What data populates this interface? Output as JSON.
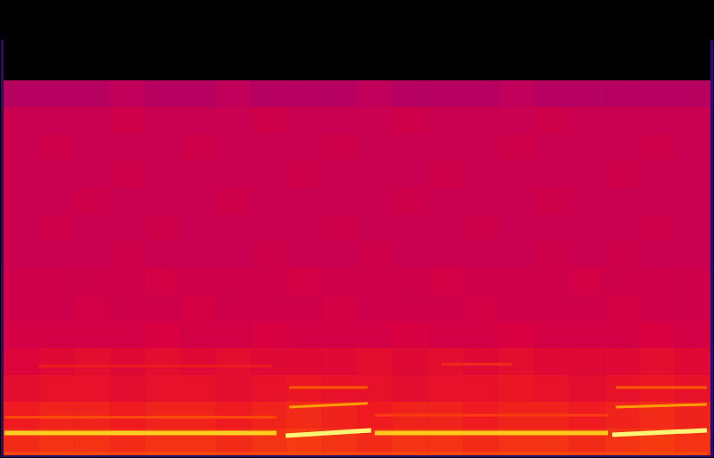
{
  "chart_data": {
    "type": "spectrogram",
    "tick_labels": false,
    "xlim": [
      0,
      100
    ],
    "ylim": [
      0,
      1
    ],
    "cells": [
      [
        0,
        0,
        0,
        0,
        0,
        0,
        0,
        0,
        0,
        0,
        0,
        0,
        0,
        0,
        0,
        0,
        0,
        0,
        0,
        0
      ],
      [
        0,
        0,
        0,
        0,
        0,
        0,
        0,
        0,
        0,
        0,
        0,
        0,
        0,
        0,
        0,
        0,
        0,
        0,
        0,
        0
      ],
      [
        0,
        0,
        0,
        0,
        0,
        0,
        0,
        0,
        0,
        0,
        0,
        0,
        0,
        0,
        0,
        0,
        0,
        0,
        0,
        0
      ],
      [
        0.52,
        0.52,
        0.52,
        0.53,
        0.52,
        0.52,
        0.53,
        0.52,
        0.52,
        0.52,
        0.53,
        0.52,
        0.52,
        0.52,
        0.53,
        0.52,
        0.52,
        0.52,
        0.52,
        0.52
      ],
      [
        0.55,
        0.55,
        0.55,
        0.56,
        0.55,
        0.55,
        0.55,
        0.56,
        0.55,
        0.55,
        0.55,
        0.56,
        0.55,
        0.55,
        0.55,
        0.56,
        0.55,
        0.55,
        0.55,
        0.55
      ],
      [
        0.55,
        0.56,
        0.55,
        0.55,
        0.55,
        0.56,
        0.55,
        0.55,
        0.55,
        0.56,
        0.55,
        0.55,
        0.55,
        0.55,
        0.56,
        0.55,
        0.55,
        0.55,
        0.56,
        0.55
      ],
      [
        0.55,
        0.55,
        0.55,
        0.56,
        0.55,
        0.55,
        0.55,
        0.55,
        0.56,
        0.55,
        0.55,
        0.55,
        0.56,
        0.55,
        0.55,
        0.55,
        0.55,
        0.56,
        0.55,
        0.55
      ],
      [
        0.55,
        0.55,
        0.56,
        0.55,
        0.55,
        0.55,
        0.56,
        0.55,
        0.55,
        0.55,
        0.55,
        0.56,
        0.55,
        0.55,
        0.55,
        0.56,
        0.55,
        0.55,
        0.55,
        0.55
      ],
      [
        0.55,
        0.56,
        0.55,
        0.55,
        0.56,
        0.55,
        0.55,
        0.55,
        0.55,
        0.56,
        0.55,
        0.55,
        0.55,
        0.56,
        0.55,
        0.55,
        0.55,
        0.55,
        0.56,
        0.55
      ],
      [
        0.55,
        0.55,
        0.55,
        0.56,
        0.55,
        0.55,
        0.55,
        0.56,
        0.55,
        0.55,
        0.56,
        0.55,
        0.55,
        0.55,
        0.55,
        0.56,
        0.55,
        0.56,
        0.55,
        0.55
      ],
      [
        0.56,
        0.56,
        0.56,
        0.56,
        0.57,
        0.56,
        0.56,
        0.56,
        0.57,
        0.56,
        0.56,
        0.56,
        0.57,
        0.56,
        0.56,
        0.56,
        0.57,
        0.56,
        0.56,
        0.56
      ],
      [
        0.56,
        0.56,
        0.57,
        0.56,
        0.56,
        0.57,
        0.56,
        0.56,
        0.56,
        0.57,
        0.56,
        0.56,
        0.56,
        0.57,
        0.56,
        0.56,
        0.56,
        0.57,
        0.56,
        0.56
      ],
      [
        0.57,
        0.57,
        0.57,
        0.57,
        0.58,
        0.57,
        0.57,
        0.58,
        0.57,
        0.57,
        0.57,
        0.58,
        0.57,
        0.57,
        0.58,
        0.57,
        0.57,
        0.57,
        0.58,
        0.57
      ],
      [
        0.59,
        0.6,
        0.61,
        0.6,
        0.61,
        0.6,
        0.61,
        0.6,
        0.6,
        0.6,
        0.61,
        0.6,
        0.61,
        0.6,
        0.61,
        0.6,
        0.6,
        0.6,
        0.61,
        0.6
      ],
      [
        0.61,
        0.62,
        0.62,
        0.61,
        0.62,
        0.62,
        0.61,
        0.62,
        0.63,
        0.62,
        0.62,
        0.61,
        0.62,
        0.62,
        0.63,
        0.62,
        0.61,
        0.62,
        0.63,
        0.62
      ],
      [
        0.64,
        0.65,
        0.65,
        0.64,
        0.65,
        0.65,
        0.64,
        0.65,
        0.66,
        0.65,
        0.64,
        0.65,
        0.65,
        0.64,
        0.65,
        0.65,
        0.64,
        0.65,
        0.66,
        0.65
      ],
      [
        0.66,
        0.67,
        0.67,
        0.66,
        0.67,
        0.67,
        0.66,
        0.67,
        0.68,
        0.67,
        0.66,
        0.67,
        0.67,
        0.66,
        0.67,
        0.67,
        0.66,
        0.67,
        0.68,
        0.67
      ]
    ],
    "tracks": [
      {
        "x": [
          0.1,
          38.6
        ],
        "y": [
          0.049,
          0.049
        ],
        "level": 0.9
      },
      {
        "x": [
          39.9,
          52.0
        ],
        "y": [
          0.043,
          0.055
        ],
        "level": 0.97
      },
      {
        "x": [
          52.5,
          85.5
        ],
        "y": [
          0.049,
          0.049
        ],
        "level": 0.89
      },
      {
        "x": [
          86.1,
          99.5
        ],
        "y": [
          0.045,
          0.055
        ],
        "level": 0.97
      },
      {
        "x": [
          40.4,
          51.5
        ],
        "y": [
          0.106,
          0.114
        ],
        "level": 0.82
      },
      {
        "x": [
          86.6,
          99.5
        ],
        "y": [
          0.106,
          0.112
        ],
        "level": 0.82
      },
      {
        "x": [
          0.1,
          38.6
        ],
        "y": [
          0.084,
          0.084
        ],
        "level": 0.7
      },
      {
        "x": [
          52.5,
          85.5
        ],
        "y": [
          0.088,
          0.088
        ],
        "level": 0.68
      },
      {
        "x": [
          40.4,
          51.5
        ],
        "y": [
          0.149,
          0.149
        ],
        "level": 0.72
      },
      {
        "x": [
          86.6,
          99.5
        ],
        "y": [
          0.149,
          0.149
        ],
        "level": 0.72
      },
      {
        "x": [
          0.1,
          99.5
        ],
        "y": [
          0.004,
          0.004
        ],
        "level": 0.7
      },
      {
        "x": [
          5,
          38
        ],
        "y": [
          0.196,
          0.196
        ],
        "level": 0.64
      },
      {
        "x": [
          62,
          72
        ],
        "y": [
          0.2,
          0.2
        ],
        "level": 0.66
      }
    ]
  }
}
